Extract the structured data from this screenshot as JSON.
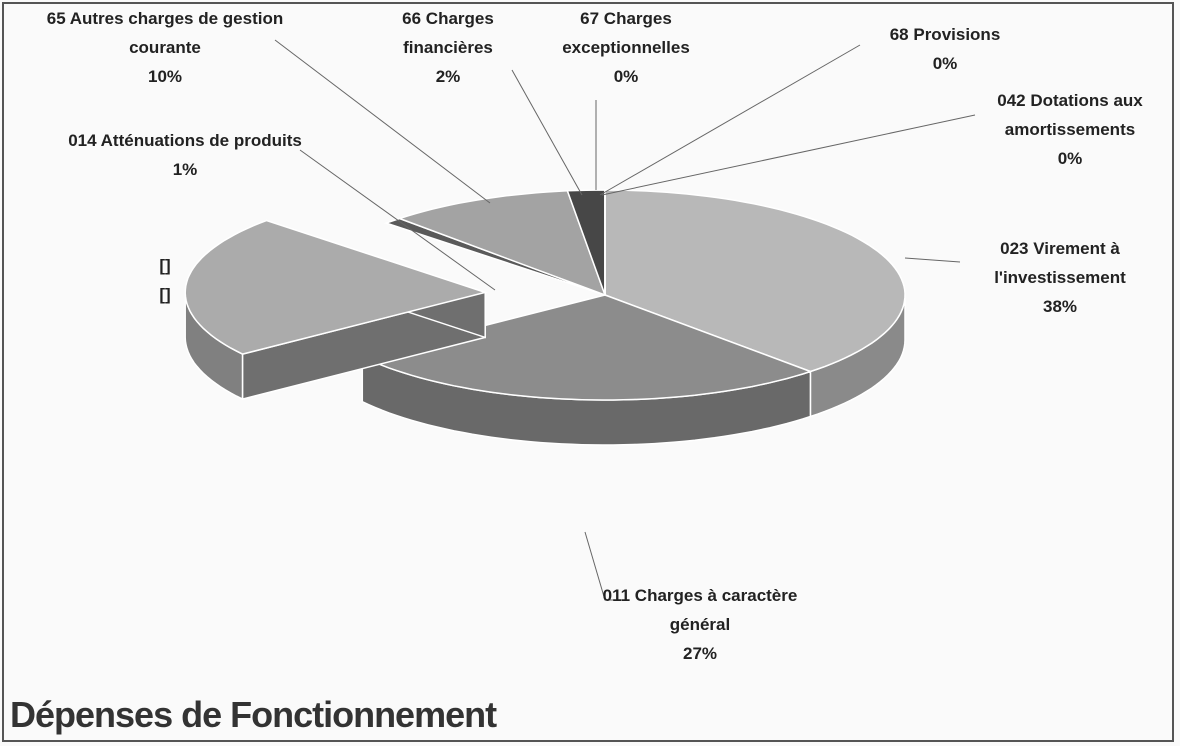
{
  "chart_data": {
    "type": "pie3d",
    "title": "Dépenses de Fonctionnement",
    "categories": [
      "023 Virement à l'investissement",
      "011 Charges à caractère général",
      "[]",
      "014 Atténuations de produits",
      "65 Autres charges de gestion courante",
      "66 Charges financières",
      "67 Charges exceptionnelles",
      "68 Provisions",
      "042 Dotations aux amortissements"
    ],
    "values": [
      38,
      27,
      22,
      1,
      10,
      2,
      0,
      0,
      0
    ],
    "value_labels": [
      "38%",
      "27%",
      "[]",
      "1%",
      "10%",
      "2%",
      "0%",
      "0%",
      "0%"
    ],
    "colors": [
      "#b8b8b8",
      "#8c8c8c",
      "#ababab",
      "#5a5a5a",
      "#a3a3a3",
      "#474747",
      "#7a7a7a",
      "#8a8a8a",
      "#9a9a9a"
    ],
    "exploded": [
      false,
      false,
      true,
      false,
      false,
      false,
      false,
      false,
      false
    ]
  }
}
